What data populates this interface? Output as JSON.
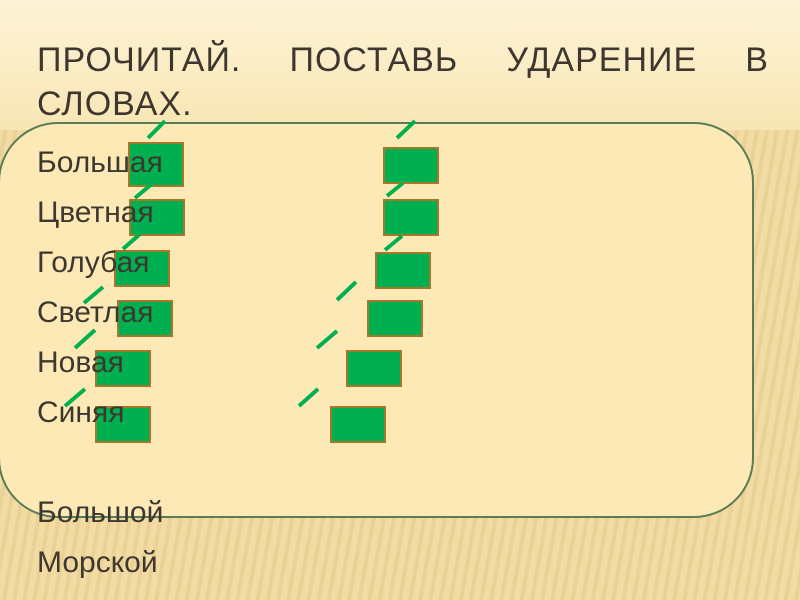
{
  "title": "ПРОЧИТАЙ. ПОСТАВЬ УДАРЕНИЕ В СЛОВАХ.",
  "words_group_1": [
    "Большая",
    "Цветная",
    "Голубая",
    "Светлая",
    "Новая",
    "Синяя"
  ],
  "words_group_2": [
    "Большой",
    "Морской"
  ],
  "colors": {
    "box_fill": "#00b050",
    "dash": "#00b050",
    "panel": "#fde9b6",
    "panel_border": "#5b7b57"
  }
}
